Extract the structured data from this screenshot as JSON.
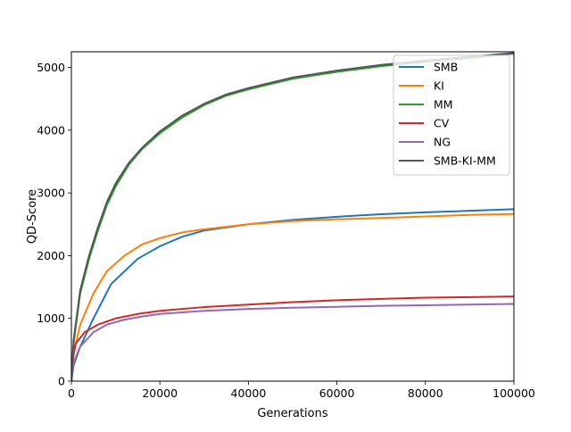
{
  "chart_data": {
    "type": "line",
    "xlabel": "Generations",
    "ylabel": "QD-Score",
    "xlim": [
      0,
      100000
    ],
    "ylim": [
      0,
      5250
    ],
    "x_ticks": [
      0,
      20000,
      40000,
      60000,
      80000,
      100000
    ],
    "x_tick_labels": [
      "0",
      "20000",
      "40000",
      "60000",
      "80000",
      "100000"
    ],
    "y_ticks": [
      0,
      1000,
      2000,
      3000,
      4000,
      5000
    ],
    "y_tick_labels": [
      "0",
      "1000",
      "2000",
      "3000",
      "4000",
      "5000"
    ],
    "grid": false,
    "legend_position": "top-right",
    "series": [
      {
        "name": "SMB",
        "color": "#1f77b4",
        "points": [
          [
            0,
            0
          ],
          [
            500,
            250
          ],
          [
            2000,
            550
          ],
          [
            5000,
            1000
          ],
          [
            9000,
            1550
          ],
          [
            12000,
            1750
          ],
          [
            15000,
            1950
          ],
          [
            20000,
            2150
          ],
          [
            25000,
            2300
          ],
          [
            30000,
            2400
          ],
          [
            40000,
            2500
          ],
          [
            50000,
            2570
          ],
          [
            60000,
            2620
          ],
          [
            70000,
            2660
          ],
          [
            80000,
            2690
          ],
          [
            90000,
            2715
          ],
          [
            100000,
            2740
          ]
        ]
      },
      {
        "name": "KI",
        "color": "#ff7f0e",
        "points": [
          [
            0,
            0
          ],
          [
            500,
            450
          ],
          [
            2000,
            900
          ],
          [
            5000,
            1400
          ],
          [
            8000,
            1750
          ],
          [
            12000,
            2000
          ],
          [
            16000,
            2180
          ],
          [
            20000,
            2280
          ],
          [
            25000,
            2370
          ],
          [
            30000,
            2420
          ],
          [
            40000,
            2500
          ],
          [
            50000,
            2550
          ],
          [
            60000,
            2580
          ],
          [
            70000,
            2600
          ],
          [
            80000,
            2625
          ],
          [
            90000,
            2650
          ],
          [
            100000,
            2665
          ]
        ]
      },
      {
        "name": "MM",
        "color": "#2ca02c",
        "points": [
          [
            0,
            0
          ],
          [
            500,
            600
          ],
          [
            2000,
            1400
          ],
          [
            4000,
            1950
          ],
          [
            6000,
            2400
          ],
          [
            8000,
            2800
          ],
          [
            10000,
            3100
          ],
          [
            13000,
            3450
          ],
          [
            16000,
            3700
          ],
          [
            20000,
            3950
          ],
          [
            25000,
            4200
          ],
          [
            30000,
            4400
          ],
          [
            35000,
            4550
          ],
          [
            40000,
            4650
          ],
          [
            50000,
            4820
          ],
          [
            60000,
            4930
          ],
          [
            70000,
            5020
          ],
          [
            80000,
            5090
          ],
          [
            90000,
            5150
          ],
          [
            100000,
            5220
          ]
        ]
      },
      {
        "name": "CV",
        "color": "#d62728",
        "points": [
          [
            0,
            0
          ],
          [
            300,
            350
          ],
          [
            1000,
            600
          ],
          [
            3000,
            780
          ],
          [
            6000,
            900
          ],
          [
            10000,
            1000
          ],
          [
            15000,
            1070
          ],
          [
            20000,
            1120
          ],
          [
            30000,
            1180
          ],
          [
            40000,
            1220
          ],
          [
            50000,
            1260
          ],
          [
            60000,
            1290
          ],
          [
            70000,
            1310
          ],
          [
            80000,
            1330
          ],
          [
            90000,
            1340
          ],
          [
            100000,
            1350
          ]
        ]
      },
      {
        "name": "NG",
        "color": "#9467bd",
        "points": [
          [
            0,
            0
          ],
          [
            500,
            300
          ],
          [
            2000,
            550
          ],
          [
            5000,
            780
          ],
          [
            8000,
            900
          ],
          [
            12000,
            980
          ],
          [
            16000,
            1030
          ],
          [
            20000,
            1070
          ],
          [
            30000,
            1120
          ],
          [
            40000,
            1150
          ],
          [
            50000,
            1170
          ],
          [
            60000,
            1185
          ],
          [
            70000,
            1200
          ],
          [
            80000,
            1210
          ],
          [
            90000,
            1220
          ],
          [
            100000,
            1230
          ]
        ]
      },
      {
        "name": "SMB-KI-MM",
        "color": "#555555",
        "points": [
          [
            0,
            0
          ],
          [
            500,
            650
          ],
          [
            2000,
            1450
          ],
          [
            4000,
            2000
          ],
          [
            6000,
            2450
          ],
          [
            8000,
            2850
          ],
          [
            10000,
            3150
          ],
          [
            13000,
            3480
          ],
          [
            16000,
            3720
          ],
          [
            20000,
            3980
          ],
          [
            25000,
            4230
          ],
          [
            30000,
            4420
          ],
          [
            35000,
            4570
          ],
          [
            40000,
            4670
          ],
          [
            50000,
            4840
          ],
          [
            60000,
            4950
          ],
          [
            70000,
            5040
          ],
          [
            80000,
            5110
          ],
          [
            90000,
            5170
          ],
          [
            100000,
            5230
          ]
        ]
      }
    ]
  }
}
